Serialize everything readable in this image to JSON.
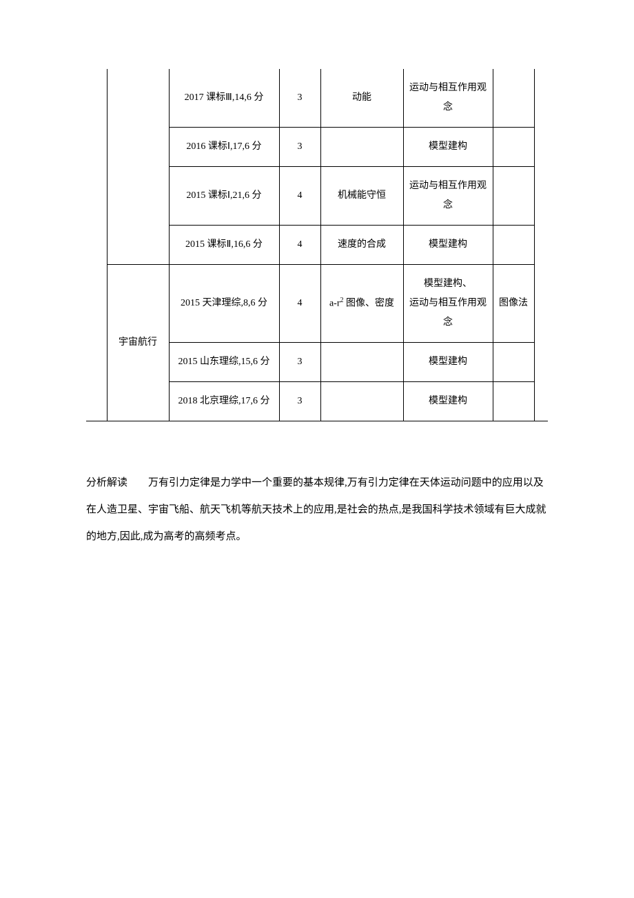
{
  "table": {
    "columns": {
      "widths": [
        30,
        90,
        160,
        60,
        120,
        130,
        60,
        20
      ],
      "border_color": "#000000",
      "text_color": "#000000",
      "font_size": 14,
      "alignment": "center"
    },
    "rows": [
      {
        "source": "2017 课标Ⅲ,14,6 分",
        "score": "3",
        "related": "动能",
        "concept": "运动与相互作用观念",
        "method": ""
      },
      {
        "source": "2016 课标Ⅰ,17,6 分",
        "score": "3",
        "related": "",
        "concept": "模型建构",
        "method": ""
      },
      {
        "source": "2015 课标Ⅰ,21,6 分",
        "score": "4",
        "related": "机械能守恒",
        "concept": "运动与相互作用观念",
        "method": ""
      },
      {
        "source": "2015 课标Ⅱ,16,6 分",
        "score": "4",
        "related": "速度的合成",
        "concept": "模型建构",
        "method": ""
      },
      {
        "source": "2015 天津理综,8,6 分",
        "score": "4",
        "related_html": "a-r² 图像、密度",
        "concept": "模型建构、\n运动与相互作用观念",
        "method": "图像法"
      },
      {
        "source": "2015 山东理综,15,6 分",
        "score": "3",
        "related": "",
        "concept": "模型建构",
        "method": ""
      },
      {
        "source": "2018 北京理综,17,6 分",
        "score": "3",
        "related": "",
        "concept": "模型建构",
        "method": ""
      }
    ],
    "section_label": "宇宙航行"
  },
  "analysis": {
    "label": "分析解读",
    "spacing": "　　",
    "body": "万有引力定律是力学中一个重要的基本规律,万有引力定律在天体运动问题中的应用以及在人造卫星、宇宙飞船、航天飞机等航天技术上的应用,是社会的热点,是我国科学技术领域有巨大成就的地方,因此,成为高考的高频考点。",
    "font_size": 15,
    "text_color": "#000000",
    "line_height": 2.6
  },
  "background_color": "#ffffff"
}
